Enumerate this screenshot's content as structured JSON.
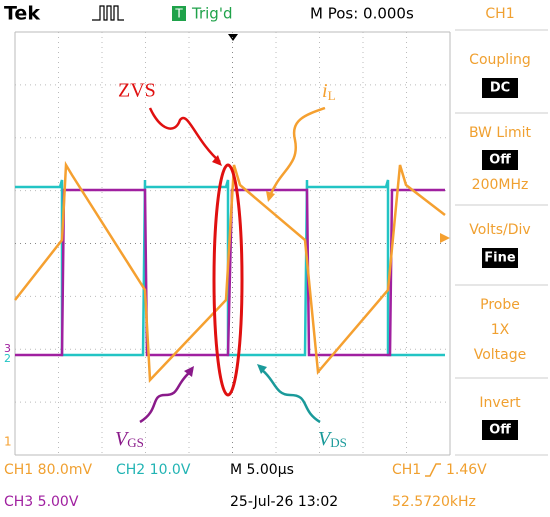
{
  "header": {
    "brand": "Tek",
    "trigger_badge": "T",
    "trigger_status": "Trig'd",
    "position": "M Pos: 0.000s",
    "channel": "CH1"
  },
  "menu": [
    {
      "label": "Coupling",
      "value": "DC"
    },
    {
      "label": "BW Limit",
      "value": "Off",
      "extra": "200MHz"
    },
    {
      "label": "Volts/Div",
      "value": "Fine"
    },
    {
      "label": "Probe",
      "lines": [
        "1X",
        "Voltage"
      ]
    },
    {
      "label": "Invert",
      "value": "Off"
    }
  ],
  "annotations": {
    "zvs": "ZVS",
    "il": {
      "main": "i",
      "sub": "L"
    },
    "vgs": {
      "main": "V",
      "sub": "GS"
    },
    "vds": {
      "main": "V",
      "sub": "DS"
    }
  },
  "markers": {
    "ch3": "3",
    "ch2": "2",
    "ch1": "1"
  },
  "footer": {
    "ch1_scale": "CH1 80.0mV",
    "ch2_scale": "CH2 10.0V",
    "timebase": "M 5.00µs",
    "trigger_source": "CH1",
    "trigger_level": "1.46V",
    "ch3_scale": "CH3 5.00V",
    "datetime": "25-Jul-26 13:02",
    "frequency": "52.5720kHz"
  }
}
